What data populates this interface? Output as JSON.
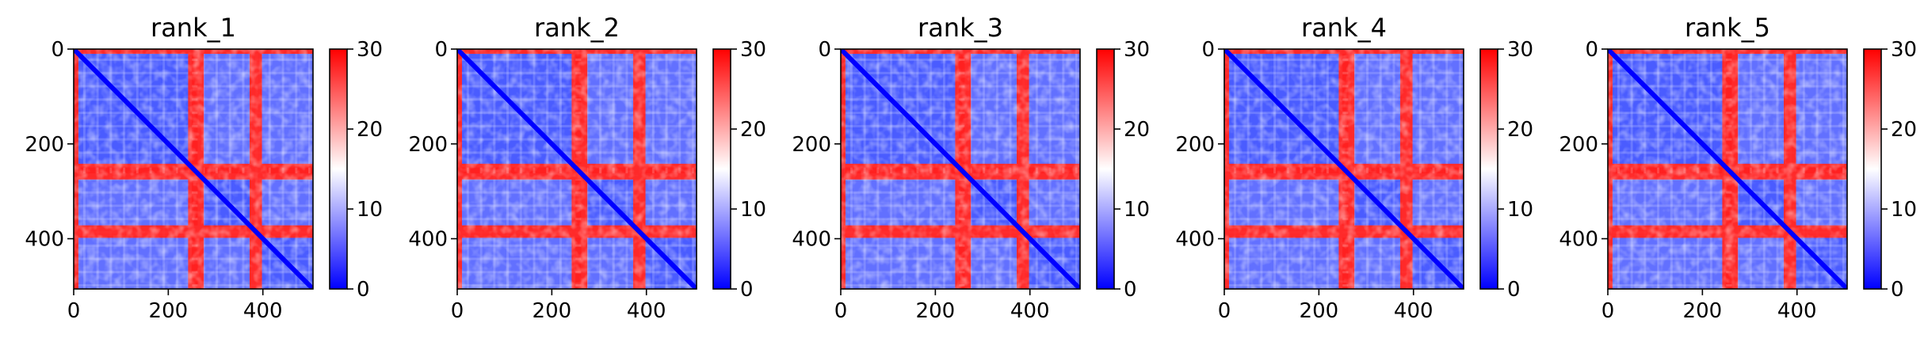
{
  "chart_data": [
    {
      "type": "heatmap",
      "title": "rank_1",
      "x_ticks": [
        0,
        200,
        400
      ],
      "y_ticks": [
        0,
        200,
        400
      ],
      "xlim": [
        0,
        506
      ],
      "ylim": [
        506,
        0
      ],
      "colorbar": {
        "min": 0,
        "max": 30,
        "ticks": [
          0,
          10,
          20,
          30
        ],
        "colormap": [
          "#0000ff",
          "#ffffff",
          "#ff0000"
        ]
      },
      "red_bands": [
        {
          "start": 0,
          "end": 10
        },
        {
          "start": 242,
          "end": 250
        },
        {
          "start": 262,
          "end": 275
        },
        {
          "start": 372,
          "end": 398
        }
      ],
      "blocks": [
        {
          "start": 10,
          "end": 242
        },
        {
          "start": 275,
          "end": 372
        },
        {
          "start": 398,
          "end": 506
        }
      ]
    },
    {
      "type": "heatmap",
      "title": "rank_2",
      "x_ticks": [
        0,
        200,
        400
      ],
      "y_ticks": [
        0,
        200,
        400
      ],
      "xlim": [
        0,
        506
      ],
      "ylim": [
        506,
        0
      ],
      "colorbar": {
        "min": 0,
        "max": 30,
        "ticks": [
          0,
          10,
          20,
          30
        ],
        "colormap": [
          "#0000ff",
          "#ffffff",
          "#ff0000"
        ]
      },
      "red_bands": [
        {
          "start": 0,
          "end": 10
        },
        {
          "start": 242,
          "end": 250
        },
        {
          "start": 262,
          "end": 275
        },
        {
          "start": 372,
          "end": 398
        }
      ],
      "blocks": [
        {
          "start": 10,
          "end": 242
        },
        {
          "start": 275,
          "end": 372
        },
        {
          "start": 398,
          "end": 506
        }
      ]
    },
    {
      "type": "heatmap",
      "title": "rank_3",
      "x_ticks": [
        0,
        200,
        400
      ],
      "y_ticks": [
        0,
        200,
        400
      ],
      "xlim": [
        0,
        506
      ],
      "ylim": [
        506,
        0
      ],
      "colorbar": {
        "min": 0,
        "max": 30,
        "ticks": [
          0,
          10,
          20,
          30
        ],
        "colormap": [
          "#0000ff",
          "#ffffff",
          "#ff0000"
        ]
      },
      "red_bands": [
        {
          "start": 0,
          "end": 10
        },
        {
          "start": 242,
          "end": 250
        },
        {
          "start": 262,
          "end": 275
        },
        {
          "start": 372,
          "end": 398
        }
      ],
      "blocks": [
        {
          "start": 10,
          "end": 242
        },
        {
          "start": 275,
          "end": 372
        },
        {
          "start": 398,
          "end": 506
        }
      ]
    },
    {
      "type": "heatmap",
      "title": "rank_4",
      "x_ticks": [
        0,
        200,
        400
      ],
      "y_ticks": [
        0,
        200,
        400
      ],
      "xlim": [
        0,
        506
      ],
      "ylim": [
        506,
        0
      ],
      "colorbar": {
        "min": 0,
        "max": 30,
        "ticks": [
          0,
          10,
          20,
          30
        ],
        "colormap": [
          "#0000ff",
          "#ffffff",
          "#ff0000"
        ]
      },
      "red_bands": [
        {
          "start": 0,
          "end": 10
        },
        {
          "start": 242,
          "end": 250
        },
        {
          "start": 262,
          "end": 275
        },
        {
          "start": 372,
          "end": 398
        }
      ],
      "blocks": [
        {
          "start": 10,
          "end": 242
        },
        {
          "start": 275,
          "end": 372
        },
        {
          "start": 398,
          "end": 506
        }
      ]
    },
    {
      "type": "heatmap",
      "title": "rank_5",
      "x_ticks": [
        0,
        200,
        400
      ],
      "y_ticks": [
        0,
        200,
        400
      ],
      "xlim": [
        0,
        506
      ],
      "ylim": [
        506,
        0
      ],
      "colorbar": {
        "min": 0,
        "max": 30,
        "ticks": [
          0,
          10,
          20,
          30
        ],
        "colormap": [
          "#0000ff",
          "#ffffff",
          "#ff0000"
        ]
      },
      "red_bands": [
        {
          "start": 0,
          "end": 10
        },
        {
          "start": 242,
          "end": 250
        },
        {
          "start": 262,
          "end": 275
        },
        {
          "start": 372,
          "end": 398
        }
      ],
      "blocks": [
        {
          "start": 10,
          "end": 242
        },
        {
          "start": 275,
          "end": 372
        },
        {
          "start": 398,
          "end": 506
        }
      ]
    }
  ]
}
